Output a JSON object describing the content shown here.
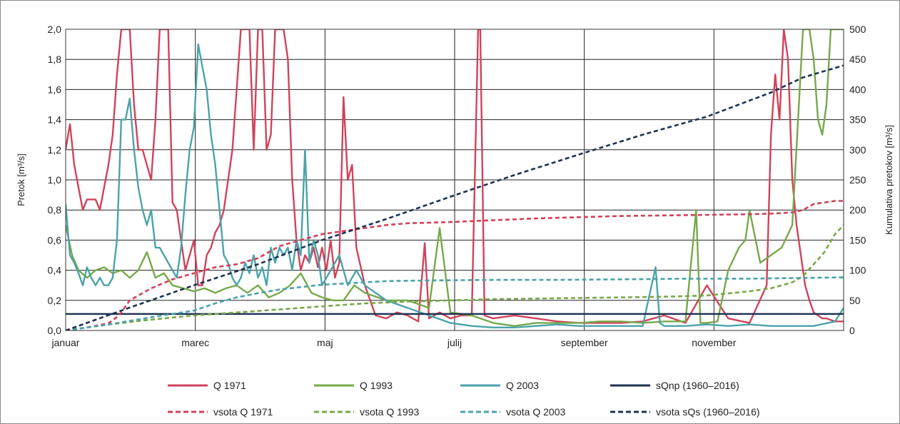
{
  "chart_data": {
    "type": "line",
    "x_categories": [
      "januar",
      "marec",
      "maj",
      "julij",
      "september",
      "november"
    ],
    "left_axis": {
      "label": "Pretok [m³/s]",
      "ylim": [
        0,
        2.0
      ],
      "ticks": [
        "0,0",
        "0,2",
        "0,4",
        "0,6",
        "0,8",
        "1,0",
        "1,2",
        "1,4",
        "1,6",
        "1,8",
        "2,0"
      ]
    },
    "right_axis": {
      "label": "Kumulativa pretokov [m³/s]",
      "ylim": [
        0,
        500
      ],
      "ticks": [
        "0",
        "50",
        "100",
        "150",
        "200",
        "250",
        "300",
        "350",
        "400",
        "450",
        "500"
      ]
    },
    "grid": "vertical at month labels, horizontal at ticks",
    "legend_position": "bottom",
    "colors": {
      "q1971": "#d0435a",
      "q1993": "#77a84a",
      "q2003": "#4aa3aa",
      "sqnp": "#1d3352",
      "sqs": "#1d3352"
    },
    "series": [
      {
        "name": "Q 1971",
        "axis": "left",
        "style": "solid",
        "color": "#d0435a",
        "x": [
          0,
          2,
          4,
          6,
          8,
          10,
          12,
          14,
          16,
          18,
          20,
          22,
          24,
          26,
          28,
          30,
          32,
          34,
          36,
          38,
          40,
          42,
          44,
          46,
          48,
          50,
          52,
          54,
          56,
          58,
          60,
          62,
          64,
          66,
          68,
          70,
          72,
          74,
          76,
          78,
          80,
          82,
          84,
          86,
          88,
          90,
          92,
          94,
          96,
          98,
          100,
          102,
          104,
          106,
          108,
          110,
          112,
          114,
          116,
          118,
          120,
          122,
          124,
          126,
          128,
          130,
          132,
          134,
          136,
          140,
          145,
          150,
          155,
          160,
          165,
          168,
          170,
          175,
          180,
          185,
          190,
          193,
          194,
          196,
          200,
          210,
          220,
          230,
          240,
          250,
          260,
          270,
          280,
          290,
          300,
          310,
          320,
          328,
          329,
          330,
          332,
          334,
          336,
          338,
          340,
          342,
          344,
          346,
          348,
          350,
          352,
          354,
          356,
          358,
          360,
          364
        ],
        "y": [
          1.2,
          1.37,
          1.1,
          0.95,
          0.8,
          0.87,
          0.87,
          0.87,
          0.8,
          0.95,
          1.1,
          1.3,
          1.7,
          2.0,
          2.0,
          2.0,
          1.5,
          1.2,
          1.2,
          1.1,
          1.0,
          1.4,
          2.0,
          2.0,
          2.0,
          0.85,
          0.8,
          0.6,
          0.4,
          0.5,
          0.6,
          0.3,
          0.3,
          0.5,
          0.55,
          0.65,
          0.7,
          0.8,
          1.0,
          1.2,
          1.6,
          2.0,
          2.0,
          2.0,
          1.2,
          2.0,
          2.0,
          1.2,
          1.3,
          2.0,
          2.0,
          2.0,
          1.8,
          1.0,
          0.6,
          0.4,
          0.5,
          0.45,
          0.55,
          0.42,
          0.55,
          0.4,
          0.6,
          0.35,
          0.45,
          1.55,
          1.0,
          1.1,
          0.55,
          0.3,
          0.1,
          0.08,
          0.12,
          0.1,
          0.06,
          0.58,
          0.08,
          0.12,
          0.08,
          0.1,
          0.1,
          2.0,
          2.0,
          0.1,
          0.08,
          0.1,
          0.08,
          0.06,
          0.05,
          0.05,
          0.05,
          0.06,
          0.1,
          0.05,
          0.3,
          0.08,
          0.05,
          0.3,
          0.8,
          1.3,
          1.7,
          1.4,
          2.0,
          1.8,
          1.0,
          0.7,
          0.5,
          0.3,
          0.2,
          0.12,
          0.1,
          0.08,
          0.08,
          0.07,
          0.06,
          0.06
        ]
      },
      {
        "name": "Q 1993",
        "axis": "left",
        "style": "solid",
        "color": "#77a84a",
        "x": [
          0,
          3,
          6,
          10,
          14,
          18,
          22,
          26,
          30,
          34,
          38,
          42,
          46,
          50,
          55,
          60,
          65,
          70,
          75,
          80,
          85,
          90,
          95,
          100,
          105,
          110,
          115,
          120,
          125,
          130,
          135,
          140,
          150,
          160,
          170,
          175,
          180,
          190,
          200,
          210,
          220,
          230,
          240,
          250,
          260,
          270,
          280,
          290,
          295,
          297,
          300,
          305,
          310,
          315,
          318,
          320,
          325,
          330,
          335,
          340,
          345,
          348,
          350,
          352,
          354,
          356,
          358,
          360,
          362,
          364
        ],
        "y": [
          0.7,
          0.5,
          0.4,
          0.35,
          0.4,
          0.42,
          0.38,
          0.4,
          0.35,
          0.4,
          0.52,
          0.35,
          0.38,
          0.3,
          0.28,
          0.26,
          0.28,
          0.25,
          0.28,
          0.3,
          0.25,
          0.3,
          0.22,
          0.25,
          0.3,
          0.38,
          0.25,
          0.22,
          0.2,
          0.2,
          0.3,
          0.25,
          0.2,
          0.2,
          0.15,
          0.68,
          0.12,
          0.1,
          0.05,
          0.03,
          0.05,
          0.05,
          0.05,
          0.06,
          0.06,
          0.05,
          0.06,
          0.06,
          0.8,
          0.05,
          0.05,
          0.06,
          0.4,
          0.55,
          0.6,
          0.8,
          0.45,
          0.5,
          0.55,
          0.7,
          2.0,
          2.0,
          1.8,
          1.4,
          1.3,
          1.5,
          2.0,
          2.0,
          2.0,
          2.0
        ]
      },
      {
        "name": "Q 2003",
        "axis": "left",
        "style": "solid",
        "color": "#4aa3aa",
        "x": [
          0,
          2,
          4,
          6,
          8,
          10,
          12,
          14,
          16,
          18,
          20,
          22,
          24,
          26,
          28,
          30,
          32,
          34,
          36,
          38,
          40,
          42,
          44,
          46,
          48,
          50,
          52,
          54,
          56,
          58,
          60,
          62,
          64,
          66,
          68,
          70,
          72,
          74,
          76,
          78,
          80,
          82,
          84,
          86,
          88,
          90,
          92,
          94,
          96,
          98,
          100,
          102,
          104,
          106,
          108,
          110,
          112,
          114,
          116,
          118,
          120,
          124,
          128,
          132,
          136,
          140,
          150,
          160,
          170,
          180,
          190,
          200,
          210,
          220,
          230,
          240,
          250,
          260,
          270,
          276,
          278,
          280,
          290,
          300,
          310,
          320,
          330,
          340,
          350,
          360,
          364
        ],
        "y": [
          0.84,
          0.5,
          0.45,
          0.38,
          0.3,
          0.42,
          0.35,
          0.3,
          0.35,
          0.3,
          0.3,
          0.35,
          0.6,
          1.4,
          1.4,
          1.54,
          1.2,
          0.95,
          0.8,
          0.7,
          0.8,
          0.55,
          0.55,
          0.5,
          0.45,
          0.4,
          0.35,
          0.55,
          0.9,
          1.2,
          1.35,
          1.9,
          1.75,
          1.6,
          1.3,
          1.1,
          0.8,
          0.5,
          0.45,
          0.35,
          0.3,
          0.35,
          0.45,
          0.38,
          0.5,
          0.35,
          0.42,
          0.3,
          0.55,
          0.45,
          0.55,
          0.5,
          0.55,
          0.4,
          0.6,
          0.5,
          1.2,
          0.45,
          0.6,
          0.5,
          0.3,
          0.4,
          0.5,
          0.3,
          0.4,
          0.3,
          0.2,
          0.15,
          0.1,
          0.05,
          0.03,
          0.02,
          0.02,
          0.03,
          0.04,
          0.03,
          0.03,
          0.03,
          0.03,
          0.42,
          0.05,
          0.03,
          0.03,
          0.04,
          0.03,
          0.04,
          0.03,
          0.03,
          0.03,
          0.06,
          0.15
        ]
      },
      {
        "name": "sQnp (1960–2016)",
        "axis": "left",
        "style": "solid",
        "color": "#1d3352",
        "x": [
          0,
          364
        ],
        "y": [
          0.11,
          0.11
        ]
      },
      {
        "name": "vsota Q 1971",
        "axis": "right",
        "style": "dashed",
        "color": "#d0435a",
        "x": [
          0,
          10,
          20,
          25,
          30,
          40,
          50,
          60,
          70,
          80,
          90,
          100,
          110,
          120,
          130,
          140,
          150,
          160,
          180,
          200,
          220,
          240,
          260,
          280,
          300,
          320,
          330,
          340,
          345,
          350,
          360,
          364
        ],
        "y": [
          0,
          5,
          12,
          25,
          50,
          70,
          85,
          95,
          105,
          110,
          120,
          140,
          150,
          160,
          165,
          170,
          175,
          178,
          180,
          183,
          186,
          188,
          190,
          191,
          192,
          193,
          194,
          196,
          200,
          210,
          215,
          215
        ]
      },
      {
        "name": "vsota Q 1993",
        "axis": "right",
        "style": "dashed",
        "color": "#77a84a",
        "x": [
          0,
          20,
          40,
          60,
          80,
          100,
          120,
          140,
          160,
          180,
          200,
          220,
          240,
          260,
          280,
          300,
          320,
          330,
          340,
          345,
          350,
          355,
          360,
          364
        ],
        "y": [
          0,
          10,
          18,
          25,
          30,
          35,
          40,
          45,
          48,
          50,
          52,
          53,
          54,
          55,
          56,
          58,
          65,
          70,
          80,
          90,
          110,
          130,
          160,
          175
        ]
      },
      {
        "name": "vsota Q 2003",
        "axis": "right",
        "style": "dashed",
        "color": "#4aa3aa",
        "x": [
          0,
          20,
          40,
          60,
          70,
          80,
          90,
          100,
          110,
          120,
          130,
          150,
          170,
          200,
          230,
          260,
          290,
          320,
          340,
          360,
          364
        ],
        "y": [
          0,
          10,
          22,
          33,
          45,
          55,
          62,
          68,
          72,
          76,
          78,
          82,
          83,
          84,
          84,
          85,
          86,
          86,
          87,
          88,
          88
        ]
      },
      {
        "name": "vsota sQs (1960–2016)",
        "axis": "right",
        "style": "dashed",
        "color": "#1d3352",
        "x": [
          0,
          30,
          60,
          90,
          120,
          150,
          180,
          210,
          240,
          270,
          300,
          330,
          345,
          364
        ],
        "y": [
          0,
          38,
          75,
          110,
          150,
          185,
          222,
          258,
          292,
          325,
          355,
          395,
          420,
          440
        ]
      }
    ]
  },
  "legend": [
    {
      "label": "Q 1971",
      "color": "#d0435a",
      "dashed": false
    },
    {
      "label": "Q 1993",
      "color": "#77a84a",
      "dashed": false
    },
    {
      "label": "Q 2003",
      "color": "#4aa3aa",
      "dashed": false
    },
    {
      "label": "sQnp (1960–2016)",
      "color": "#1d3352",
      "dashed": false
    },
    {
      "label": "vsota Q 1971",
      "color": "#d0435a",
      "dashed": true
    },
    {
      "label": "vsota Q 1993",
      "color": "#77a84a",
      "dashed": true
    },
    {
      "label": "vsota Q 2003",
      "color": "#4aa3aa",
      "dashed": true
    },
    {
      "label": "vsota sQs (1960–2016)",
      "color": "#1d3352",
      "dashed": true
    }
  ]
}
